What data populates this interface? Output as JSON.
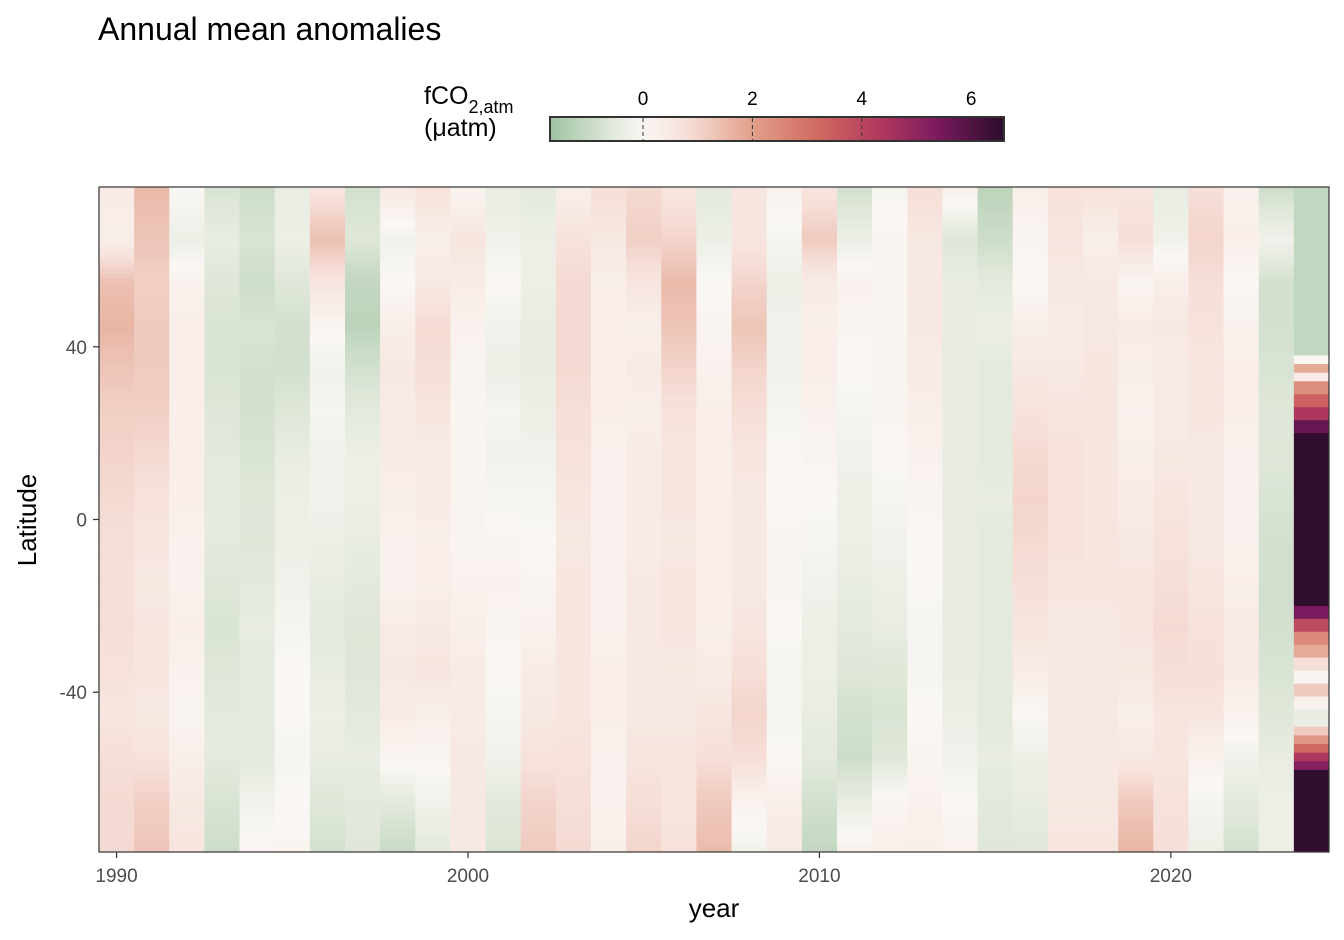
{
  "chart_data": {
    "type": "heatmap",
    "title": "Annual mean anomalies",
    "xlabel": "year",
    "ylabel": "Latitude",
    "xlim": [
      1989.5,
      2024.5
    ],
    "ylim": [
      -77,
      77
    ],
    "x_ticks": [
      1990,
      2000,
      2010,
      2020
    ],
    "y_ticks": [
      40,
      0,
      -40
    ],
    "y_tick_labels": [
      "40",
      "0",
      "-40"
    ],
    "legend": {
      "title_main": "fCO",
      "title_sub": "2,atm",
      "title_unit": "(μatm)",
      "ticks": [
        0,
        2,
        4,
        6
      ],
      "tick_labels": [
        "0",
        "2",
        "4",
        "6"
      ],
      "range": [
        -1.7,
        6.6
      ],
      "position": "top"
    },
    "colorscale": [
      {
        "value": -1.7,
        "color": "#9fc3a1"
      },
      {
        "value": -0.6,
        "color": "#dfe7d9"
      },
      {
        "value": 0.0,
        "color": "#faf7f4"
      },
      {
        "value": 0.8,
        "color": "#f6dfd8"
      },
      {
        "value": 2.0,
        "color": "#e2a08a"
      },
      {
        "value": 3.2,
        "color": "#d06a60"
      },
      {
        "value": 4.3,
        "color": "#b23a5e"
      },
      {
        "value": 5.4,
        "color": "#7a1a5e"
      },
      {
        "value": 6.6,
        "color": "#2a0c2a"
      }
    ],
    "latitude_profile": [
      -77,
      -65,
      -55,
      -45,
      -35,
      -25,
      -15,
      -5,
      5,
      15,
      25,
      35,
      45,
      55,
      65,
      77
    ],
    "series": [
      {
        "year": 1990,
        "values": [
          0.9,
          0.9,
          0.8,
          0.6,
          0.7,
          0.8,
          0.8,
          0.8,
          0.9,
          1.0,
          1.1,
          1.3,
          1.6,
          1.4,
          0.3,
          0.4
        ]
      },
      {
        "year": 1991,
        "values": [
          1.3,
          1.1,
          0.7,
          0.5,
          0.6,
          0.6,
          0.5,
          0.6,
          0.7,
          0.9,
          1.1,
          1.2,
          1.2,
          1.1,
          1.3,
          1.5
        ]
      },
      {
        "year": 1992,
        "values": [
          0.6,
          0.5,
          0.3,
          0.1,
          0.2,
          0.3,
          0.2,
          0.2,
          0.3,
          0.3,
          0.3,
          0.3,
          0.3,
          0.2,
          -0.3,
          0.0
        ]
      },
      {
        "year": 1993,
        "values": [
          -0.9,
          -0.7,
          -0.5,
          -0.5,
          -0.6,
          -0.7,
          -0.6,
          -0.5,
          -0.5,
          -0.5,
          -0.6,
          -0.7,
          -0.7,
          -0.6,
          -0.4,
          -0.7
        ]
      },
      {
        "year": 1994,
        "values": [
          0.1,
          -0.2,
          -0.5,
          -0.5,
          -0.5,
          -0.4,
          -0.5,
          -0.6,
          -0.6,
          -0.7,
          -0.8,
          -0.8,
          -0.7,
          -0.9,
          -0.7,
          -0.9
        ]
      },
      {
        "year": 1995,
        "values": [
          0.1,
          0.0,
          -0.1,
          0.0,
          0.0,
          -0.1,
          -0.2,
          -0.3,
          -0.3,
          -0.4,
          -0.6,
          -0.8,
          -0.8,
          -0.6,
          -0.3,
          -0.4
        ]
      },
      {
        "year": 1996,
        "values": [
          -0.8,
          -0.6,
          -0.4,
          -0.3,
          -0.4,
          -0.5,
          -0.4,
          -0.3,
          -0.2,
          -0.2,
          -0.1,
          -0.2,
          0.1,
          0.6,
          1.4,
          0.6
        ]
      },
      {
        "year": 1997,
        "values": [
          -0.6,
          -0.5,
          -0.4,
          -0.5,
          -0.6,
          -0.6,
          -0.5,
          -0.4,
          -0.3,
          -0.3,
          -0.5,
          -0.8,
          -1.2,
          -1.1,
          -0.6,
          -0.8
        ]
      },
      {
        "year": 1998,
        "values": [
          -1.0,
          -0.5,
          0.1,
          0.4,
          0.5,
          0.4,
          0.2,
          0.2,
          0.3,
          0.4,
          0.4,
          0.5,
          0.3,
          0.0,
          -0.2,
          0.5
        ]
      },
      {
        "year": 1999,
        "values": [
          -0.5,
          -0.2,
          0.1,
          0.3,
          0.6,
          0.5,
          0.3,
          0.3,
          0.4,
          0.4,
          0.6,
          0.8,
          0.9,
          0.5,
          0.3,
          0.7
        ]
      },
      {
        "year": 2000,
        "values": [
          0.5,
          0.5,
          0.5,
          0.4,
          0.4,
          0.3,
          0.2,
          0.1,
          0.1,
          0.1,
          0.1,
          0.1,
          0.2,
          0.4,
          0.6,
          0.1
        ]
      },
      {
        "year": 2001,
        "values": [
          -0.7,
          -0.5,
          -0.2,
          -0.1,
          0.0,
          0.1,
          0.2,
          0.1,
          -0.1,
          -0.2,
          -0.1,
          -0.3,
          -0.2,
          0.0,
          -0.2,
          -0.4
        ]
      },
      {
        "year": 2002,
        "values": [
          1.2,
          1.0,
          0.7,
          0.5,
          0.4,
          0.2,
          0.1,
          0.0,
          -0.1,
          -0.2,
          -0.3,
          -0.4,
          -0.4,
          -0.3,
          -0.3,
          -0.5
        ]
      },
      {
        "year": 2003,
        "values": [
          0.9,
          0.8,
          0.7,
          0.6,
          0.6,
          0.6,
          0.6,
          0.5,
          0.6,
          0.7,
          0.8,
          0.9,
          0.9,
          0.9,
          0.7,
          0.3
        ]
      },
      {
        "year": 2004,
        "values": [
          0.3,
          0.2,
          0.2,
          0.3,
          0.3,
          0.2,
          0.2,
          0.2,
          0.2,
          0.2,
          0.3,
          0.3,
          0.3,
          0.3,
          0.5,
          0.8
        ]
      },
      {
        "year": 2005,
        "values": [
          1.0,
          0.8,
          0.6,
          0.5,
          0.5,
          0.5,
          0.5,
          0.4,
          0.4,
          0.4,
          0.3,
          0.4,
          0.3,
          0.6,
          1.1,
          0.9
        ]
      },
      {
        "year": 2006,
        "values": [
          0.7,
          0.6,
          0.6,
          0.5,
          0.5,
          0.6,
          0.6,
          0.5,
          0.6,
          0.6,
          0.7,
          1.0,
          1.3,
          1.5,
          1.0,
          0.6
        ]
      },
      {
        "year": 2007,
        "values": [
          1.5,
          1.2,
          0.8,
          0.6,
          0.4,
          0.3,
          0.3,
          0.3,
          0.3,
          0.3,
          0.3,
          0.2,
          0.1,
          0.0,
          -0.3,
          -0.5
        ]
      },
      {
        "year": 2008,
        "values": [
          -0.2,
          0.2,
          0.8,
          1.0,
          0.8,
          0.6,
          0.5,
          0.5,
          0.5,
          0.6,
          0.8,
          1.0,
          1.3,
          1.0,
          0.6,
          0.6
        ]
      },
      {
        "year": 2009,
        "values": [
          0.5,
          0.3,
          0.0,
          -0.1,
          -0.1,
          0.0,
          0.1,
          0.1,
          0.0,
          0.0,
          -0.1,
          -0.2,
          -0.2,
          -0.3,
          -0.1,
          0.2
        ]
      },
      {
        "year": 2010,
        "values": [
          -1.1,
          -0.8,
          -0.5,
          -0.4,
          -0.3,
          -0.3,
          -0.2,
          -0.1,
          0.0,
          0.1,
          0.2,
          0.3,
          0.3,
          0.4,
          1.2,
          0.6
        ]
      },
      {
        "year": 2011,
        "values": [
          0.2,
          -0.4,
          -0.9,
          -0.8,
          -0.6,
          -0.5,
          -0.4,
          -0.3,
          -0.3,
          -0.2,
          -0.1,
          0.0,
          0.1,
          0.2,
          -0.3,
          -0.8
        ]
      },
      {
        "year": 2012,
        "values": [
          0.3,
          0.1,
          -0.6,
          -0.7,
          -0.6,
          -0.4,
          -0.3,
          -0.2,
          -0.1,
          0.0,
          0.1,
          0.1,
          0.1,
          0.1,
          0.1,
          -0.1
        ]
      },
      {
        "year": 2013,
        "values": [
          0.3,
          0.2,
          0.1,
          0.0,
          -0.1,
          -0.1,
          0.0,
          0.0,
          0.1,
          0.2,
          0.3,
          0.4,
          0.5,
          0.5,
          0.5,
          0.8
        ]
      },
      {
        "year": 2014,
        "values": [
          0.2,
          0.0,
          -0.2,
          -0.3,
          -0.4,
          -0.4,
          -0.4,
          -0.4,
          -0.4,
          -0.4,
          -0.4,
          -0.4,
          -0.4,
          -0.4,
          -0.6,
          0.3
        ]
      },
      {
        "year": 2015,
        "values": [
          -0.6,
          -0.5,
          -0.4,
          -0.5,
          -0.5,
          -0.5,
          -0.5,
          -0.5,
          -0.4,
          -0.5,
          -0.5,
          -0.5,
          -0.3,
          -0.5,
          -0.9,
          -1.2
        ]
      },
      {
        "year": 2016,
        "values": [
          -0.6,
          -0.4,
          -0.3,
          0.0,
          0.4,
          0.6,
          0.8,
          0.9,
          1.0,
          0.9,
          0.7,
          0.5,
          0.3,
          0.0,
          0.1,
          0.3
        ]
      },
      {
        "year": 2017,
        "values": [
          0.6,
          0.5,
          0.5,
          0.5,
          0.5,
          0.5,
          0.6,
          0.7,
          0.7,
          0.7,
          0.6,
          0.5,
          0.4,
          0.5,
          0.6,
          0.7
        ]
      },
      {
        "year": 2018,
        "values": [
          0.6,
          0.5,
          0.5,
          0.5,
          0.5,
          0.5,
          0.6,
          0.6,
          0.6,
          0.6,
          0.6,
          0.6,
          0.5,
          0.5,
          0.3,
          0.7
        ]
      },
      {
        "year": 2019,
        "values": [
          1.6,
          1.2,
          0.5,
          0.3,
          0.5,
          0.6,
          0.6,
          0.5,
          0.4,
          0.3,
          0.2,
          0.3,
          0.4,
          0.1,
          0.8,
          0.6
        ]
      },
      {
        "year": 2020,
        "values": [
          0.8,
          0.7,
          0.6,
          0.6,
          0.8,
          0.9,
          0.8,
          0.7,
          0.6,
          0.5,
          0.4,
          0.4,
          0.5,
          0.3,
          -0.2,
          -0.4
        ]
      },
      {
        "year": 2021,
        "values": [
          -0.3,
          -0.1,
          0.2,
          0.6,
          0.8,
          0.7,
          0.6,
          0.5,
          0.5,
          0.5,
          0.6,
          0.6,
          0.7,
          0.8,
          1.0,
          0.8
        ]
      },
      {
        "year": 2022,
        "values": [
          -0.8,
          -0.5,
          -0.2,
          0.2,
          0.4,
          0.4,
          0.3,
          0.2,
          0.2,
          0.2,
          0.3,
          0.3,
          0.2,
          0.0,
          0.3,
          0.2
        ]
      },
      {
        "year": 2023,
        "values": [
          -0.3,
          -0.3,
          -0.4,
          -0.6,
          -0.7,
          -0.8,
          -0.8,
          -0.8,
          -0.7,
          -0.6,
          -0.6,
          -0.7,
          -0.8,
          -0.8,
          -0.2,
          -0.9
        ]
      }
    ],
    "series_2024": {
      "year": 2024,
      "segments": [
        {
          "lat_from": 77,
          "lat_to": 38,
          "value": -1.1
        },
        {
          "lat_from": 38,
          "lat_to": 36,
          "value": 0.0
        },
        {
          "lat_from": 36,
          "lat_to": 34,
          "value": 1.8
        },
        {
          "lat_from": 34,
          "lat_to": 32,
          "value": 0.4
        },
        {
          "lat_from": 32,
          "lat_to": 29,
          "value": 2.4
        },
        {
          "lat_from": 29,
          "lat_to": 26,
          "value": 3.4
        },
        {
          "lat_from": 26,
          "lat_to": 23,
          "value": 4.4
        },
        {
          "lat_from": 23,
          "lat_to": 20,
          "value": 5.7
        },
        {
          "lat_from": 20,
          "lat_to": -20,
          "value": 6.5
        },
        {
          "lat_from": -20,
          "lat_to": -23,
          "value": 5.4
        },
        {
          "lat_from": -23,
          "lat_to": -26,
          "value": 3.9
        },
        {
          "lat_from": -26,
          "lat_to": -29,
          "value": 2.5
        },
        {
          "lat_from": -29,
          "lat_to": -32,
          "value": 1.8
        },
        {
          "lat_from": -32,
          "lat_to": -35,
          "value": 0.8
        },
        {
          "lat_from": -35,
          "lat_to": -38,
          "value": 0.1
        },
        {
          "lat_from": -38,
          "lat_to": -41,
          "value": 1.2
        },
        {
          "lat_from": -41,
          "lat_to": -44,
          "value": 0.2
        },
        {
          "lat_from": -44,
          "lat_to": -48,
          "value": -0.4
        },
        {
          "lat_from": -48,
          "lat_to": -50,
          "value": 1.2
        },
        {
          "lat_from": -50,
          "lat_to": -52,
          "value": 2.2
        },
        {
          "lat_from": -52,
          "lat_to": -54,
          "value": 3.2
        },
        {
          "lat_from": -54,
          "lat_to": -56,
          "value": 4.4
        },
        {
          "lat_from": -56,
          "lat_to": -58,
          "value": 5.2
        },
        {
          "lat_from": -58,
          "lat_to": -77,
          "value": 6.5
        }
      ]
    }
  }
}
